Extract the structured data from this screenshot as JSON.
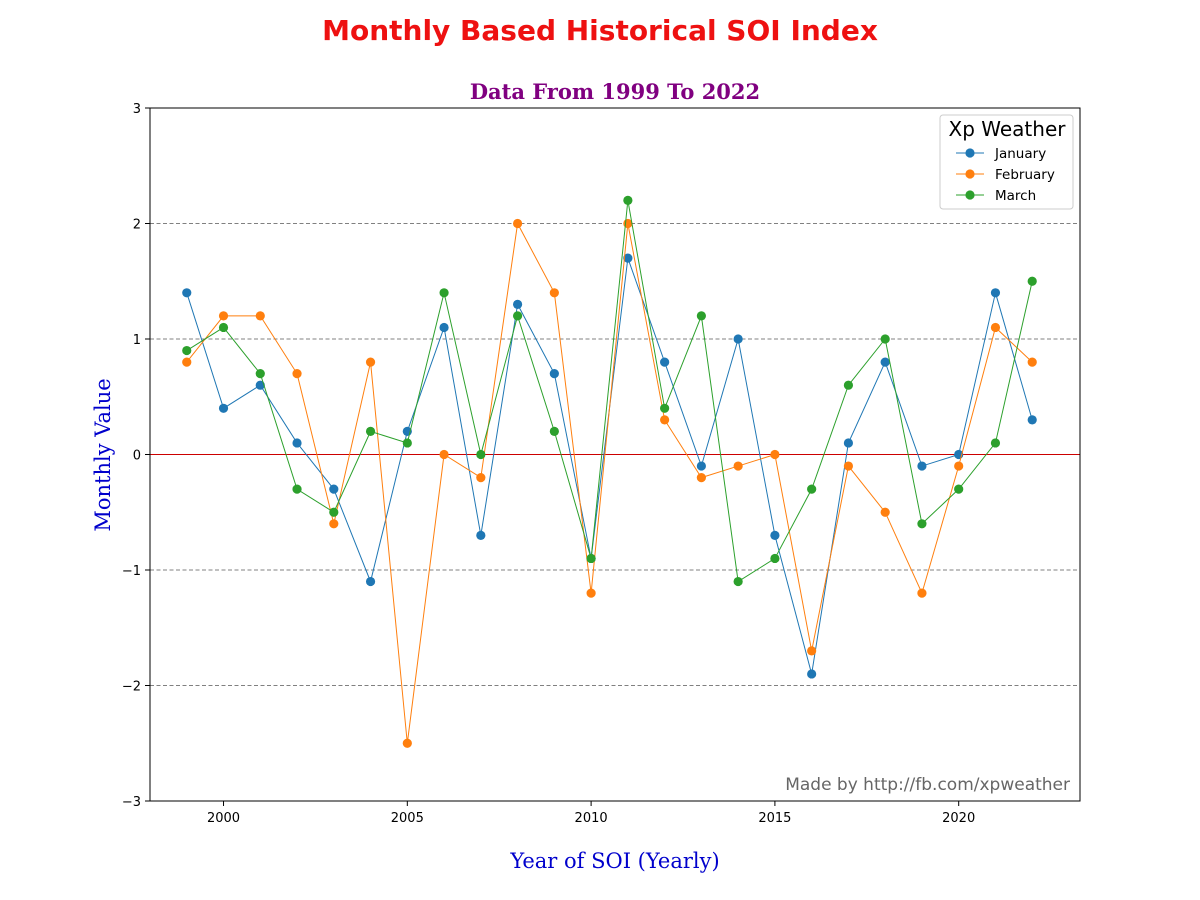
{
  "chart_data": {
    "type": "line",
    "title": "Monthly Based Historical SOI Index",
    "subtitle": "Data From 1999 To 2022",
    "xlabel": "Year of SOI (Yearly)",
    "ylabel": "Monthly Value",
    "xlim": [
      1998,
      2023.3
    ],
    "ylim": [
      -3,
      3
    ],
    "xticks": [
      2000,
      2005,
      2010,
      2015,
      2020
    ],
    "yticks": [
      -3,
      -2,
      -1,
      0,
      1,
      2,
      3
    ],
    "ytick_labels": [
      "−3",
      "−2",
      "−1",
      "0",
      "1",
      "2",
      "3"
    ],
    "x": [
      1999,
      2000,
      2001,
      2002,
      2003,
      2004,
      2005,
      2006,
      2007,
      2008,
      2009,
      2010,
      2011,
      2012,
      2013,
      2014,
      2015,
      2016,
      2017,
      2018,
      2019,
      2020,
      2021,
      2022
    ],
    "series": [
      {
        "name": "January",
        "color": "#1f77b4",
        "values": [
          1.4,
          0.4,
          0.6,
          0.1,
          -0.3,
          -1.1,
          0.2,
          1.1,
          -0.7,
          1.3,
          0.7,
          -0.9,
          1.7,
          0.8,
          -0.1,
          1.0,
          -0.7,
          -1.9,
          0.1,
          0.8,
          -0.1,
          0.0,
          1.4,
          0.3
        ]
      },
      {
        "name": "February",
        "color": "#ff7f0e",
        "values": [
          0.8,
          1.2,
          1.2,
          0.7,
          -0.6,
          0.8,
          -2.5,
          0.0,
          -0.2,
          2.0,
          1.4,
          -1.2,
          2.0,
          0.3,
          -0.2,
          -0.1,
          0.0,
          -1.7,
          -0.1,
          -0.5,
          -1.2,
          -0.1,
          1.1,
          0.8
        ]
      },
      {
        "name": "March",
        "color": "#2ca02c",
        "values": [
          0.9,
          1.1,
          0.7,
          -0.3,
          -0.5,
          0.2,
          0.1,
          1.4,
          0.0,
          1.2,
          0.2,
          -0.9,
          2.2,
          0.4,
          1.2,
          -1.1,
          -0.9,
          -0.3,
          0.6,
          1.0,
          -0.6,
          -0.3,
          0.1,
          1.5
        ]
      }
    ],
    "gridlines": "horizontal dashed",
    "zero_line_color": "#cc0000",
    "legend": {
      "title": "Xp Weather",
      "placement": "upper right"
    },
    "watermark": "Made by http://fb.com/xpweather",
    "colors": {
      "title": "#ee1111",
      "subtitle": "#800080",
      "axis_labels": "#0000cc"
    }
  }
}
